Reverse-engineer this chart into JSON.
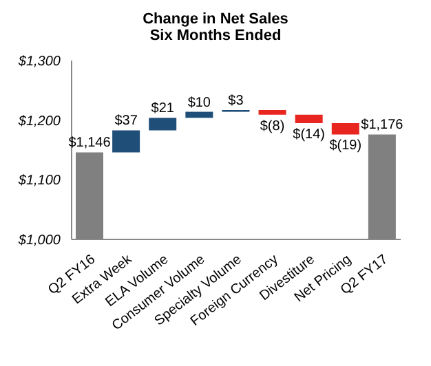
{
  "chart_data": {
    "type": "bar",
    "title": "Change in Net Sales",
    "subtitle": "Six Months Ended",
    "categories": [
      "Q2 FY16",
      "Extra Week",
      "ELA Volume",
      "Consumer Volume",
      "Specialty Volume",
      "Foreign Currency",
      "Divestiture",
      "Net Pricing",
      "Q2 FY17"
    ],
    "values": [
      1146,
      37,
      21,
      10,
      3,
      -8,
      -14,
      -19,
      1176
    ],
    "base": [
      null,
      1146,
      1183,
      1204,
      1214,
      1217,
      1209,
      1195,
      null
    ],
    "colors": [
      "#808080",
      "#1f4e79",
      "#1f4e79",
      "#1f4e79",
      "#1f4e79",
      "#e8251f",
      "#e8251f",
      "#e8251f",
      "#808080"
    ],
    "value_labels": [
      "$1,146",
      "$37",
      "$21",
      "$10",
      "$3",
      "$(8)",
      "$(14)",
      "$(19)",
      "$1,176"
    ],
    "ylim": [
      1000,
      1300
    ],
    "yticks": [
      {
        "value": 1000,
        "label": "$1,000"
      },
      {
        "value": 1100,
        "label": "$1,100"
      },
      {
        "value": 1200,
        "label": "$1,200"
      },
      {
        "value": 1300,
        "label": "$1,300"
      }
    ],
    "grid": false,
    "legend": false
  }
}
